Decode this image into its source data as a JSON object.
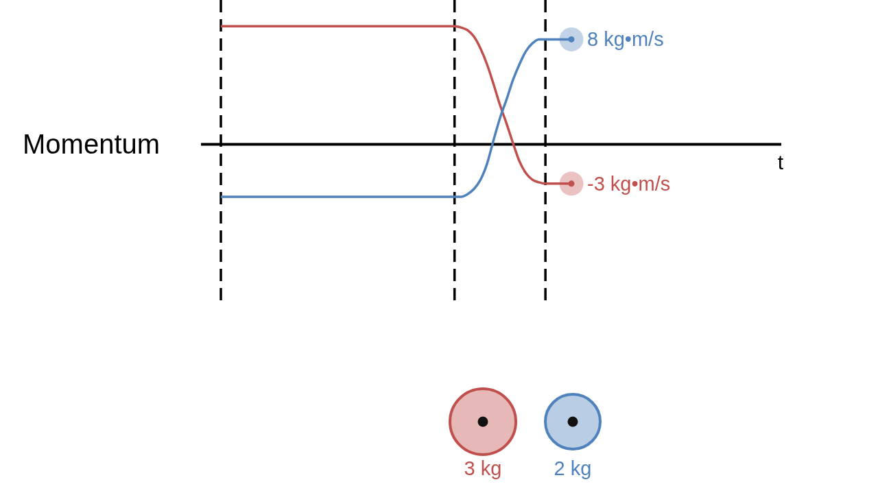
{
  "chart_data": {
    "type": "line",
    "ylabel": "Momentum",
    "categories": [
      null,
      null,
      null,
      null,
      null,
      null,
      null,
      null,
      null,
      null,
      null,
      null,
      null,
      null,
      null,
      null,
      null,
      null,
      null,
      null,
      null,
      null,
      null,
      null,
      null,
      null,
      null,
      null,
      null,
      null,
      null,
      null,
      null,
      null,
      null,
      null,
      null,
      null,
      null,
      null,
      null,
      null,
      null,
      null,
      null,
      null,
      null,
      null,
      null,
      null,
      null,
      null,
      null,
      null,
      null
    ],
    "ylim": [
      -12,
      11
    ],
    "tick_labels": false,
    "legend": "bottom",
    "grid": "x",
    "series": [
      {
        "name": "3 kg",
        "color": "#c0504d",
        "values": [
          9,
          9,
          9,
          9,
          9,
          9,
          9,
          9,
          9,
          9,
          9,
          9,
          9,
          9,
          9,
          9,
          9,
          9,
          9,
          9,
          9,
          9,
          9,
          9,
          9,
          9,
          9,
          9,
          9,
          9,
          9,
          9,
          9,
          9,
          9,
          9,
          9,
          8.9,
          8.7,
          8.2,
          7.3,
          6.1,
          4.6,
          3,
          1.6,
          0.1,
          -1.3,
          -2.2,
          -2.7,
          -2.9,
          -3,
          -3,
          -3,
          -3,
          -3
        ],
        "value_labels": [
          null,
          null,
          null,
          null,
          null,
          null,
          null,
          null,
          null,
          null,
          null,
          null,
          null,
          null,
          null,
          null,
          null,
          null,
          null,
          null,
          null,
          null,
          null,
          null,
          null,
          null,
          null,
          null,
          null,
          null,
          null,
          null,
          null,
          null,
          null,
          null,
          null,
          null,
          null,
          null,
          null,
          null,
          null,
          null,
          null,
          null,
          null,
          null,
          null,
          null,
          null,
          null,
          null,
          null,
          "-3 kg•m/s"
        ]
      },
      {
        "name": "2 kg",
        "color": "#4f81bd",
        "values": [
          -4,
          -4,
          -4,
          -4,
          -4,
          -4,
          -4,
          -4,
          -4,
          -4,
          -4,
          -4,
          -4,
          -4,
          -4,
          -4,
          -4,
          -4,
          -4,
          -4,
          -4,
          -4,
          -4,
          -4,
          -4,
          -4,
          -4,
          -4,
          -4,
          -4,
          -4,
          -4,
          -4,
          -4,
          -4,
          -4,
          -4,
          -4,
          -3.8,
          -3.4,
          -2.7,
          -1.5,
          0.3,
          2,
          3.4,
          4.9,
          6.1,
          7.1,
          7.7,
          8,
          8,
          8,
          8,
          8,
          8
        ],
        "value_labels": [
          null,
          null,
          null,
          null,
          null,
          null,
          null,
          null,
          null,
          null,
          null,
          null,
          null,
          null,
          null,
          null,
          null,
          null,
          null,
          null,
          null,
          null,
          null,
          null,
          null,
          null,
          null,
          null,
          null,
          null,
          null,
          null,
          null,
          null,
          null,
          null,
          null,
          null,
          null,
          null,
          null,
          null,
          null,
          null,
          null,
          null,
          null,
          null,
          null,
          null,
          null,
          null,
          null,
          null,
          "8 kg•m/s"
        ]
      }
    ],
    "ref_lines": [
      {
        "axis": "y",
        "value": 0,
        "color": "#000000",
        "label": "t"
      }
    ]
  }
}
